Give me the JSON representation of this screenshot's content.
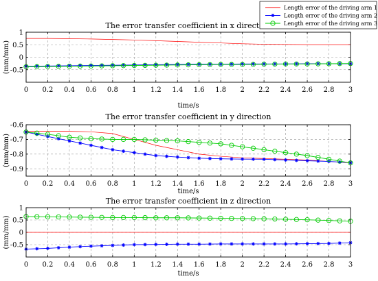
{
  "colors": {
    "arm1": "#ff0000",
    "arm2": "#0000ff",
    "arm3": "#00cc00",
    "grid": "#999999",
    "axis": "#000000"
  },
  "legend": {
    "placement": "top-right",
    "entries": [
      "Length error of the driving arm 1",
      "Length error of the driving arm 2",
      "Length error of the driving arm 3"
    ]
  },
  "chart_data": [
    {
      "type": "line",
      "title": "The error transfer coefficient in x direction",
      "xlabel": "time/s",
      "ylabel": "(mm/mm)",
      "xlim": [
        0,
        3
      ],
      "ylim": [
        -1,
        1
      ],
      "grid": true,
      "x_ticks": [
        "0",
        "0.2",
        "0.4",
        "0.6",
        "0.8",
        "1",
        "1.2",
        "1.4",
        "1.6",
        "1.8",
        "2",
        "2.2",
        "2.4",
        "2.6",
        "2.8",
        "3"
      ],
      "y_ticks": [
        "1",
        "0.5",
        "0",
        "-0.5"
      ],
      "x": [
        0,
        0.2,
        0.4,
        0.6,
        0.8,
        1,
        1.2,
        1.4,
        1.6,
        1.8,
        2,
        2.2,
        2.4,
        2.6,
        2.8,
        3
      ],
      "series": [
        {
          "name": "Length error of the driving arm 1",
          "values": [
            0.75,
            0.75,
            0.74,
            0.73,
            0.71,
            0.69,
            0.66,
            0.63,
            0.6,
            0.57,
            0.54,
            0.52,
            0.51,
            0.5,
            0.5,
            0.5
          ]
        },
        {
          "name": "Length error of the driving arm 2",
          "values": [
            -0.36,
            -0.35,
            -0.34,
            -0.33,
            -0.32,
            -0.31,
            -0.3,
            -0.29,
            -0.28,
            -0.28,
            -0.27,
            -0.27,
            -0.27,
            -0.26,
            -0.26,
            -0.26
          ]
        },
        {
          "name": "Length error of the driving arm 3",
          "values": [
            -0.38,
            -0.37,
            -0.36,
            -0.35,
            -0.34,
            -0.33,
            -0.32,
            -0.31,
            -0.3,
            -0.29,
            -0.29,
            -0.28,
            -0.27,
            -0.27,
            -0.26,
            -0.25
          ]
        }
      ]
    },
    {
      "type": "line",
      "title": "The error transfer coefficient in y direction",
      "xlabel": "time/s",
      "ylabel": "(mm/mm)",
      "xlim": [
        0,
        3
      ],
      "ylim": [
        -0.95,
        -0.6
      ],
      "grid": true,
      "x_ticks": [
        "0",
        "0.2",
        "0.4",
        "0.6",
        "0.8",
        "1",
        "1.2",
        "1.4",
        "1.6",
        "1.8",
        "2",
        "2.2",
        "2.4",
        "2.6",
        "2.8",
        "3"
      ],
      "y_ticks": [
        "-0.6",
        "-0.7",
        "-0.8",
        "-0.9"
      ],
      "x": [
        0,
        0.2,
        0.4,
        0.6,
        0.8,
        1,
        1.2,
        1.4,
        1.6,
        1.8,
        2,
        2.2,
        2.4,
        2.6,
        2.8,
        3
      ],
      "series": [
        {
          "name": "Length error of the driving arm 1",
          "values": [
            -0.645,
            -0.645,
            -0.645,
            -0.648,
            -0.66,
            -0.7,
            -0.74,
            -0.77,
            -0.8,
            -0.815,
            -0.825,
            -0.83,
            -0.835,
            -0.84,
            -0.85,
            -0.86
          ]
        },
        {
          "name": "Length error of the driving arm 2",
          "values": [
            -0.65,
            -0.68,
            -0.71,
            -0.74,
            -0.77,
            -0.79,
            -0.81,
            -0.82,
            -0.828,
            -0.832,
            -0.834,
            -0.835,
            -0.84,
            -0.845,
            -0.85,
            -0.858
          ]
        },
        {
          "name": "Length error of the driving arm 3",
          "values": [
            -0.65,
            -0.665,
            -0.685,
            -0.695,
            -0.7,
            -0.7,
            -0.705,
            -0.71,
            -0.72,
            -0.73,
            -0.75,
            -0.77,
            -0.79,
            -0.81,
            -0.835,
            -0.86
          ]
        }
      ]
    },
    {
      "type": "line",
      "title": "The error transfer coefficient in z direction",
      "xlabel": "time/s",
      "ylabel": "(mm/mm)",
      "xlim": [
        0,
        3
      ],
      "ylim": [
        -1,
        1
      ],
      "grid": true,
      "x_ticks": [
        "0",
        "0.2",
        "0.4",
        "0.6",
        "0.8",
        "1",
        "1.2",
        "1.4",
        "1.6",
        "1.8",
        "2",
        "2.2",
        "2.4",
        "2.6",
        "2.8",
        "3"
      ],
      "y_ticks": [
        "1",
        "0.5",
        "0",
        "-0.5"
      ],
      "x": [
        0,
        0.2,
        0.4,
        0.6,
        0.8,
        1,
        1.2,
        1.4,
        1.6,
        1.8,
        2,
        2.2,
        2.4,
        2.6,
        2.8,
        3
      ],
      "series": [
        {
          "name": "Length error of the driving arm 1",
          "values": [
            0,
            0,
            0,
            0,
            0,
            0,
            0,
            0,
            0,
            0,
            0,
            0,
            0,
            0,
            0,
            0
          ]
        },
        {
          "name": "Length error of the driving arm 2",
          "values": [
            -0.68,
            -0.65,
            -0.6,
            -0.56,
            -0.53,
            -0.5,
            -0.49,
            -0.48,
            -0.48,
            -0.47,
            -0.47,
            -0.47,
            -0.47,
            -0.46,
            -0.45,
            -0.42
          ]
        },
        {
          "name": "Length error of the driving arm 3",
          "values": [
            0.64,
            0.63,
            0.62,
            0.61,
            0.6,
            0.6,
            0.59,
            0.59,
            0.58,
            0.57,
            0.56,
            0.55,
            0.53,
            0.51,
            0.48,
            0.45
          ]
        }
      ]
    }
  ]
}
